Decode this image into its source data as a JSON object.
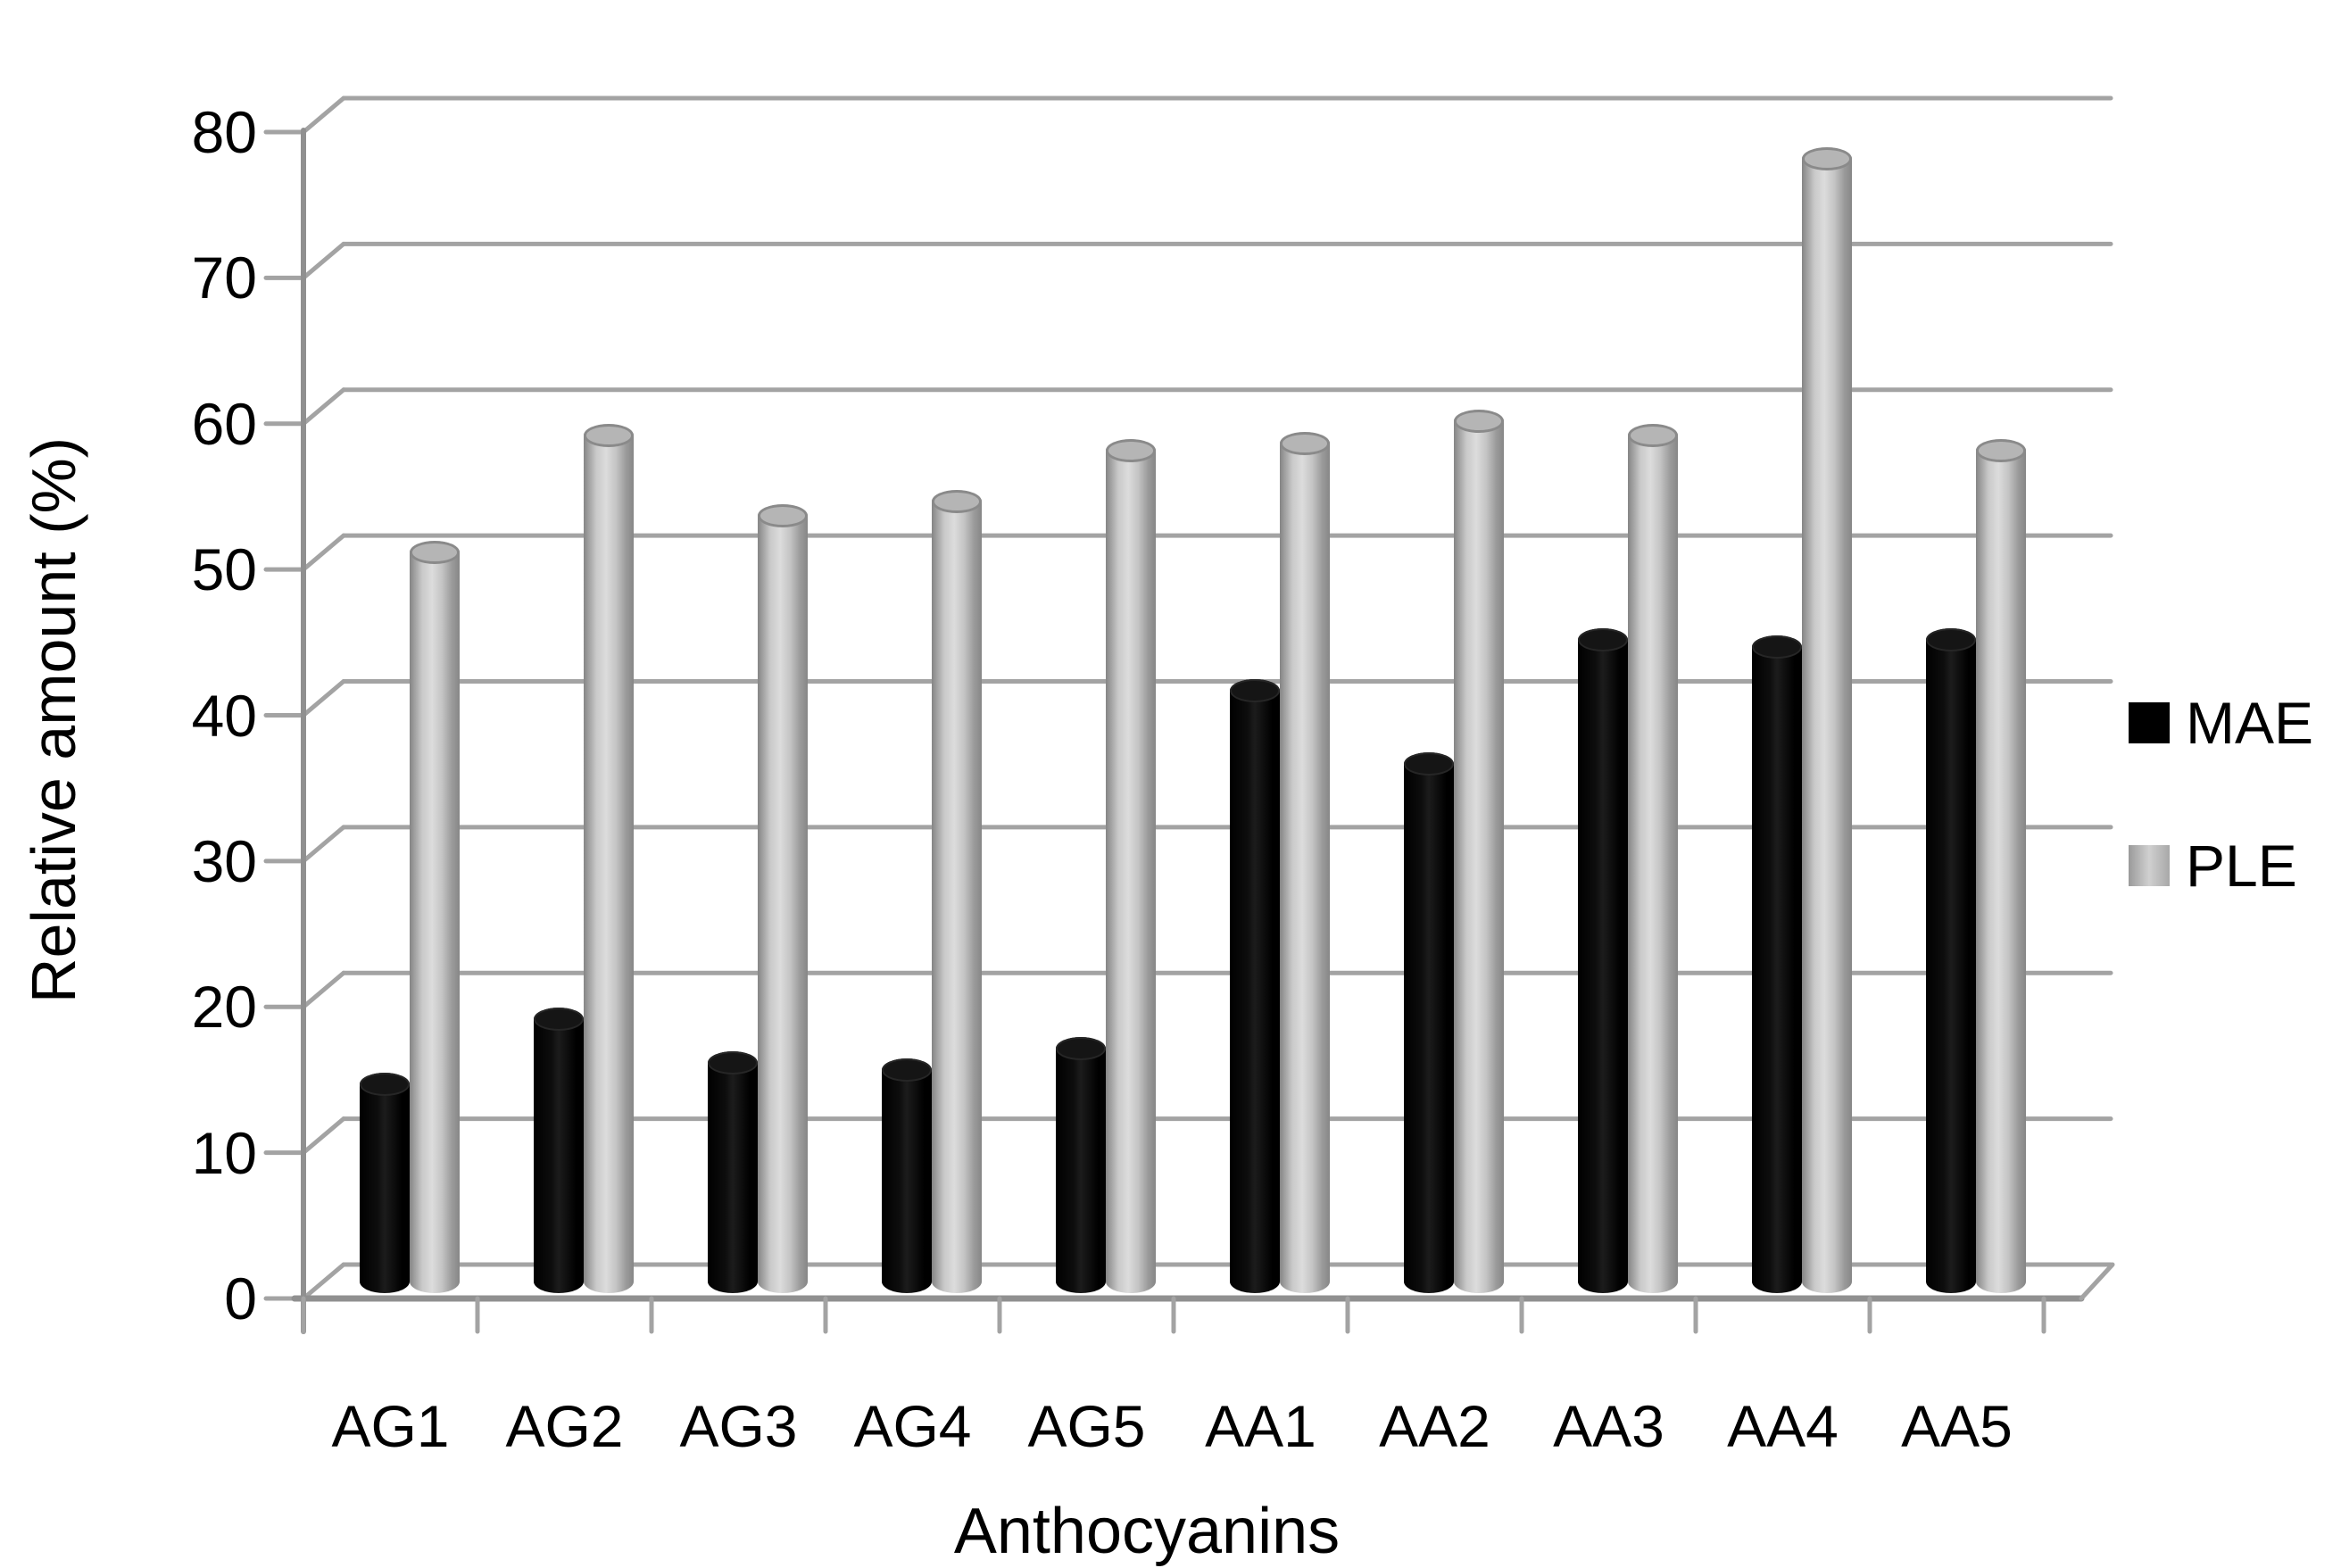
{
  "figure": {
    "ylabel": "Relative amount (%)",
    "xlabel": "Anthocyanins"
  },
  "chart_data": {
    "type": "bar",
    "style": "3d-cylinder",
    "title": "",
    "xlabel": "Anthocyanins",
    "ylabel": "Relative amount (%)",
    "categories": [
      "AG1",
      "AG2",
      "AG3",
      "AG4",
      "AG5",
      "AA1",
      "AA2",
      "AA3",
      "AA4",
      "AA5"
    ],
    "series": [
      {
        "name": "MAE",
        "color": "#000000",
        "values": [
          13.5,
          18,
          15,
          14.5,
          16,
          40.5,
          35.5,
          44,
          43.5,
          44
        ]
      },
      {
        "name": "PLE",
        "color": "#bfbfbf",
        "values": [
          50,
          58,
          52.5,
          53.5,
          57,
          57.5,
          59,
          58,
          77,
          57
        ]
      }
    ],
    "ylim": [
      0,
      80
    ],
    "ytick_step": 10,
    "yticks": [
      0,
      10,
      20,
      30,
      40,
      50,
      60,
      70,
      80
    ],
    "grid": true,
    "legend_position": "right",
    "grid_color": "#a3a3a3",
    "axis_color": "#909090"
  }
}
